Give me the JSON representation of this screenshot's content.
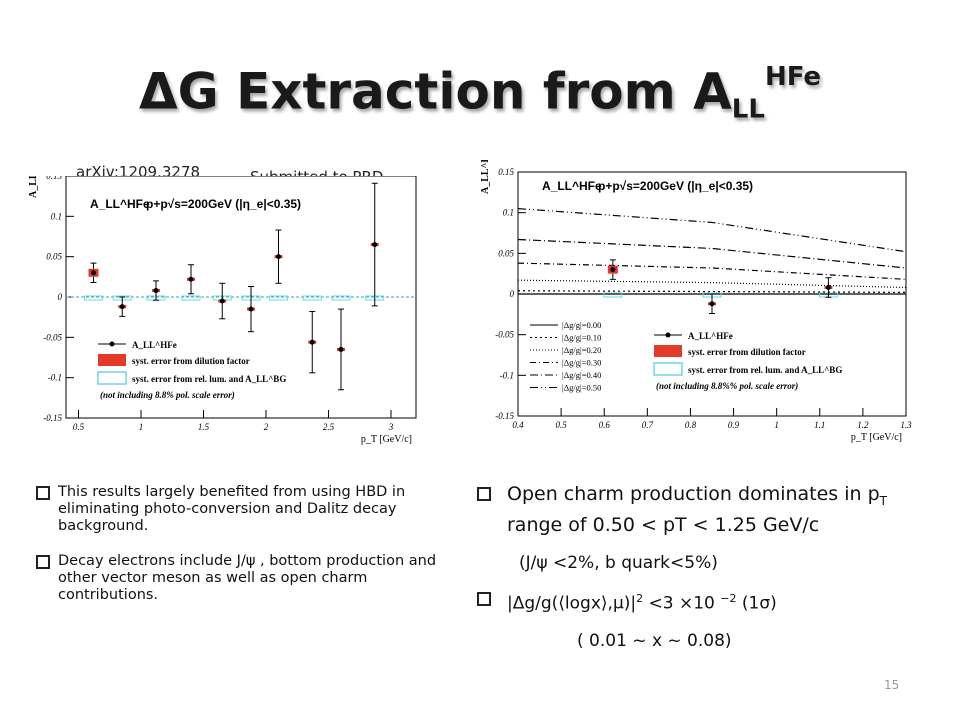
{
  "slide": {
    "title_prefix": "ΔG Extraction from A",
    "title_sub": "LL",
    "title_sup": "HFe",
    "arxiv": "arXiv:1209.3278",
    "submitted": "Submitted to PRD",
    "page_number": "15"
  },
  "left_bullets": [
    "This results largely benefited from using HBD in eliminating photo-conversion and Dalitz decay background.",
    "Decay electrons include J/ψ , bottom production and other vector meson as well as open charm contributions."
  ],
  "right_bullets": {
    "b1_pre": "Open charm production dominates in p",
    "b1_sub": "T",
    "b1_post": " range of 0.50 < pT < 1.25 GeV/c",
    "b1_note": "(J/ψ <2%, b quark<5%)",
    "b2_pre": "|Δg/g(⟨logx⟩,μ)|",
    "b2_sup": "2",
    "b2_mid": " <3 ×10 ",
    "b2_exp": "−2",
    "b2_post": " (1σ)",
    "b2_note": "( 0.01 ~ x ~ 0.08)"
  },
  "chart_data": [
    {
      "type": "scatter",
      "title": "",
      "header": "p+p√s=200GeV (|η_e|<0.35)",
      "legend_symbol": "A_LL^HFe",
      "xlabel": "p_T [GeV/c]",
      "ylabel": "A_LL^HFe",
      "xlim": [
        0.4,
        3.2
      ],
      "ylim": [
        -0.15,
        0.15
      ],
      "xticks": [
        "0.5",
        "1",
        "1.5",
        "2",
        "2.5",
        "3"
      ],
      "yticks": [
        "-0.15",
        "-0.1",
        "-0.05",
        "0",
        "0.05",
        "0.1",
        "0.15"
      ],
      "points": [
        {
          "x": 0.62,
          "y": 0.03,
          "err": 0.012
        },
        {
          "x": 0.85,
          "y": -0.012,
          "err": 0.012
        },
        {
          "x": 1.12,
          "y": 0.008,
          "err": 0.012
        },
        {
          "x": 1.4,
          "y": 0.022,
          "err": 0.018
        },
        {
          "x": 1.65,
          "y": -0.005,
          "err": 0.022
        },
        {
          "x": 1.88,
          "y": -0.015,
          "err": 0.028
        },
        {
          "x": 2.1,
          "y": 0.05,
          "err": 0.033
        },
        {
          "x": 2.37,
          "y": -0.056,
          "err": 0.038
        },
        {
          "x": 2.6,
          "y": -0.065,
          "err": 0.05
        },
        {
          "x": 2.87,
          "y": 0.065,
          "err": 0.076
        }
      ],
      "legend": [
        "syst. error from dilution factor",
        "syst. error from rel. lum. and A_LL^BG",
        "(not including 8.8% pol. scale error)"
      ]
    },
    {
      "type": "line",
      "title": "",
      "header": "p+p√s=200GeV (|η_e|<0.35)",
      "legend_symbol": "A_LL^HFe",
      "xlabel": "p_T [GeV/c]",
      "ylabel": "A_LL^HFe",
      "xlim": [
        0.4,
        1.3
      ],
      "ylim": [
        -0.15,
        0.15
      ],
      "xticks": [
        "0.4",
        "0.5",
        "0.6",
        "0.7",
        "0.8",
        "0.9",
        "1",
        "1.1",
        "1.2",
        "1.3"
      ],
      "yticks": [
        "-0.15",
        "-0.1",
        "-0.05",
        "0",
        "0.05",
        "0.1",
        "0.15"
      ],
      "series": [
        {
          "name": "|Δg/g|=0.00",
          "dash": "",
          "x": [
            0.4,
            1.3
          ],
          "y": [
            0.0,
            0.0
          ]
        },
        {
          "name": "|Δg/g|=0.10",
          "dash": "2,3",
          "x": [
            0.4,
            0.85,
            1.3
          ],
          "y": [
            0.004,
            0.003,
            0.002
          ]
        },
        {
          "name": "|Δg/g|=0.20",
          "dash": "1,2",
          "x": [
            0.4,
            0.85,
            1.3
          ],
          "y": [
            0.017,
            0.014,
            0.008
          ]
        },
        {
          "name": "|Δg/g|=0.30",
          "dash": "6,3,1,3",
          "x": [
            0.4,
            0.85,
            1.3
          ],
          "y": [
            0.038,
            0.032,
            0.018
          ]
        },
        {
          "name": "|Δg/g|=0.40",
          "dash": "8,3,1,3",
          "x": [
            0.4,
            0.85,
            1.3
          ],
          "y": [
            0.067,
            0.056,
            0.032
          ]
        },
        {
          "name": "|Δg/g|=0.50",
          "dash": "8,3,1,3,1,3",
          "x": [
            0.4,
            0.85,
            1.3
          ],
          "y": [
            0.105,
            0.088,
            0.052
          ]
        }
      ],
      "points": [
        {
          "x": 0.62,
          "y": 0.03,
          "err": 0.012
        },
        {
          "x": 0.85,
          "y": -0.012,
          "err": 0.012
        },
        {
          "x": 1.12,
          "y": 0.008,
          "err": 0.012
        }
      ],
      "legend": [
        "syst. error from dilution factor",
        "syst. error from rel. lum. and A_LL^BG",
        "(not including 8.8%% pol. scale error)"
      ]
    }
  ]
}
